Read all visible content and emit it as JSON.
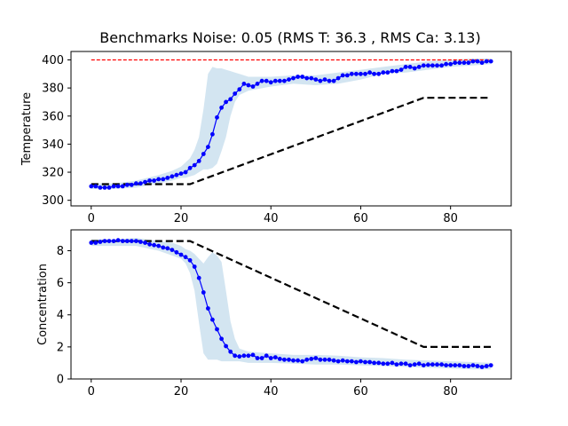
{
  "colors": {
    "marker": "#0000ff",
    "band": "#aecfe6",
    "reference": "#000000",
    "setpoint": "#ff0000",
    "axis": "#000000"
  },
  "chart_data": [
    {
      "type": "line",
      "title": "Benchmarks Noise: 0.05 (RMS T: 36.3 , RMS Ca: 3.13)",
      "xlabel": "",
      "ylabel": "Temperature",
      "xlim": [
        -4.5,
        93.5
      ],
      "ylim": [
        296,
        406
      ],
      "xticks": [
        0,
        20,
        40,
        60,
        80
      ],
      "yticks": [
        300,
        320,
        340,
        360,
        380,
        400
      ],
      "grid": false,
      "series": [
        {
          "style": "marker-line",
          "x": [
            0,
            1,
            2,
            3,
            4,
            5,
            6,
            7,
            8,
            9,
            10,
            11,
            12,
            13,
            14,
            15,
            16,
            17,
            18,
            19,
            20,
            21,
            22,
            23,
            24,
            25,
            26,
            27,
            28,
            29,
            30,
            31,
            32,
            33,
            34,
            35,
            36,
            37,
            38,
            39,
            40,
            41,
            42,
            43,
            44,
            45,
            46,
            47,
            48,
            49,
            50,
            51,
            52,
            53,
            54,
            55,
            56,
            57,
            58,
            59,
            60,
            61,
            62,
            63,
            64,
            65,
            66,
            67,
            68,
            69,
            70,
            71,
            72,
            73,
            74,
            75,
            76,
            77,
            78,
            79,
            80,
            81,
            82,
            83,
            84,
            85,
            86,
            87,
            88,
            89
          ],
          "y": [
            310,
            310,
            309,
            309,
            309,
            310,
            310,
            310,
            311,
            311,
            312,
            312,
            313,
            314,
            314,
            315,
            315,
            316,
            317,
            318,
            319,
            320,
            323,
            325,
            328,
            333,
            338,
            347,
            359,
            366,
            370,
            372,
            376,
            379,
            383,
            382,
            381,
            383,
            385,
            385,
            384,
            385,
            385,
            385,
            386,
            387,
            388,
            388,
            387,
            387,
            386,
            385,
            386,
            385,
            385,
            387,
            389,
            389,
            390,
            390,
            390,
            390,
            391,
            390,
            390,
            391,
            391,
            392,
            392,
            393,
            395,
            395,
            394,
            395,
            396,
            396,
            396,
            396,
            396,
            397,
            397,
            398,
            398,
            398,
            398,
            399,
            399,
            398,
            399,
            399
          ]
        },
        {
          "style": "band",
          "x": [
            0,
            5,
            10,
            15,
            18,
            20,
            21,
            22,
            23,
            24,
            25,
            26,
            27,
            28,
            29,
            30,
            31,
            32,
            33,
            35,
            40,
            45,
            50,
            55,
            60,
            65,
            70,
            75,
            80,
            85,
            89
          ],
          "lower": [
            308,
            308,
            309,
            312,
            314,
            316,
            316,
            317,
            318,
            320,
            322,
            322,
            323,
            326,
            335,
            345,
            360,
            370,
            375,
            378,
            381,
            383,
            382,
            383,
            386,
            390,
            391,
            393,
            395,
            396,
            397
          ],
          "upper": [
            312,
            312,
            314,
            318,
            321,
            324,
            327,
            330,
            336,
            345,
            365,
            390,
            395,
            394,
            394,
            393,
            392,
            391,
            390,
            388,
            388,
            389,
            389,
            391,
            393,
            395,
            397,
            399,
            400,
            401,
            401
          ]
        },
        {
          "style": "dashed-reference",
          "x": [
            0,
            22,
            74,
            89
          ],
          "y": [
            311.5,
            311.5,
            373,
            373
          ]
        },
        {
          "style": "setpoint",
          "x": [
            0,
            89
          ],
          "y": [
            400,
            400
          ]
        }
      ]
    },
    {
      "type": "line",
      "title": "",
      "xlabel": "",
      "ylabel": "Concentration",
      "xlim": [
        -4.5,
        93.5
      ],
      "ylim": [
        0,
        9.3
      ],
      "xticks": [
        0,
        20,
        40,
        60,
        80
      ],
      "yticks": [
        0,
        2,
        4,
        6,
        8
      ],
      "grid": false,
      "series": [
        {
          "style": "marker-line",
          "x": [
            0,
            1,
            2,
            3,
            4,
            5,
            6,
            7,
            8,
            9,
            10,
            11,
            12,
            13,
            14,
            15,
            16,
            17,
            18,
            19,
            20,
            21,
            22,
            23,
            24,
            25,
            26,
            27,
            28,
            29,
            30,
            31,
            32,
            33,
            34,
            35,
            36,
            37,
            38,
            39,
            40,
            41,
            42,
            43,
            44,
            45,
            46,
            47,
            48,
            49,
            50,
            51,
            52,
            53,
            54,
            55,
            56,
            57,
            58,
            59,
            60,
            61,
            62,
            63,
            64,
            65,
            66,
            67,
            68,
            69,
            70,
            71,
            72,
            73,
            74,
            75,
            76,
            77,
            78,
            79,
            80,
            81,
            82,
            83,
            84,
            85,
            86,
            87,
            88,
            89
          ],
          "y": [
            8.5,
            8.5,
            8.55,
            8.6,
            8.6,
            8.6,
            8.65,
            8.6,
            8.6,
            8.6,
            8.6,
            8.55,
            8.5,
            8.4,
            8.35,
            8.3,
            8.2,
            8.15,
            8.05,
            7.9,
            7.75,
            7.6,
            7.4,
            7.0,
            6.3,
            5.4,
            4.4,
            3.7,
            3.1,
            2.5,
            2.05,
            1.7,
            1.45,
            1.4,
            1.45,
            1.45,
            1.5,
            1.3,
            1.3,
            1.45,
            1.3,
            1.35,
            1.25,
            1.2,
            1.2,
            1.15,
            1.15,
            1.1,
            1.2,
            1.25,
            1.3,
            1.2,
            1.2,
            1.2,
            1.15,
            1.1,
            1.15,
            1.1,
            1.1,
            1.05,
            1.1,
            1.05,
            1.05,
            1.0,
            1.0,
            0.95,
            0.95,
            1.0,
            0.9,
            0.95,
            0.95,
            0.85,
            0.9,
            0.95,
            0.85,
            0.9,
            0.9,
            0.9,
            0.9,
            0.85,
            0.85,
            0.85,
            0.85,
            0.8,
            0.8,
            0.85,
            0.8,
            0.75,
            0.8,
            0.85
          ]
        },
        {
          "style": "band",
          "x": [
            0,
            5,
            10,
            15,
            18,
            20,
            21,
            22,
            23,
            24,
            25,
            26,
            27,
            28,
            29,
            30,
            31,
            32,
            33,
            35,
            40,
            45,
            50,
            55,
            60,
            65,
            70,
            75,
            80,
            85,
            89
          ],
          "lower": [
            8.3,
            8.3,
            8.3,
            8.0,
            7.7,
            7.5,
            7.2,
            6.6,
            5.5,
            3.5,
            1.6,
            1.2,
            1.2,
            1.2,
            1.1,
            1.1,
            1.1,
            1.1,
            1.1,
            1.0,
            1.0,
            0.95,
            0.9,
            0.9,
            0.85,
            0.8,
            0.75,
            0.7,
            0.65,
            0.6,
            0.6
          ],
          "upper": [
            8.7,
            8.7,
            8.8,
            8.6,
            8.5,
            8.3,
            8.1,
            8.0,
            7.8,
            7.5,
            7.2,
            7.6,
            7.9,
            7.7,
            7.3,
            5.5,
            3.6,
            2.5,
            1.9,
            1.7,
            1.6,
            1.5,
            1.5,
            1.45,
            1.35,
            1.3,
            1.2,
            1.15,
            1.1,
            1.05,
            1.0
          ]
        },
        {
          "style": "dashed-reference",
          "x": [
            0,
            22,
            74,
            89
          ],
          "y": [
            8.6,
            8.6,
            2.0,
            2.0
          ]
        }
      ]
    }
  ]
}
